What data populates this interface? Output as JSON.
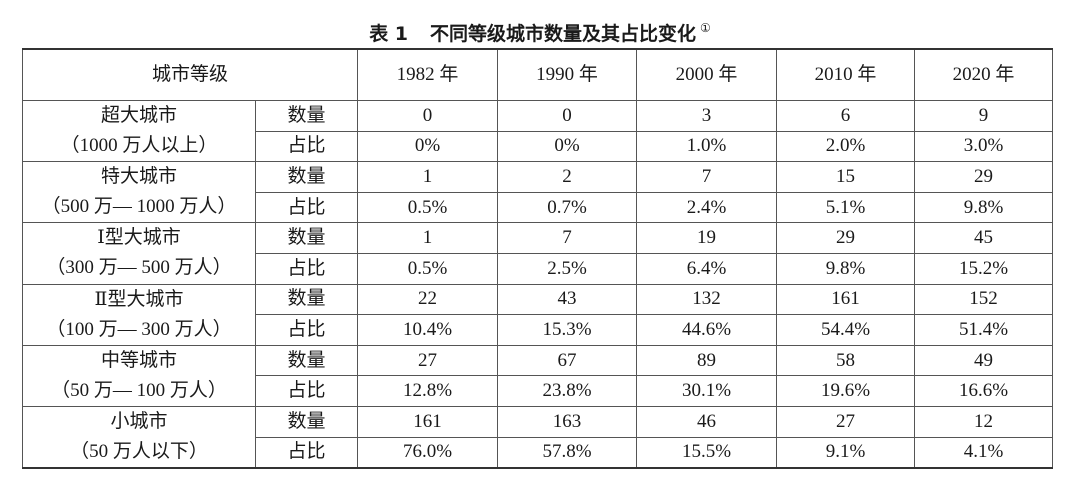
{
  "title": {
    "label": "表 1",
    "text": "不同等级城市数量及其占比变化",
    "note": "①"
  },
  "table": {
    "header": [
      "城市等级",
      "1982 年",
      "1990 年",
      "2000 年",
      "2010 年",
      "2020 年"
    ],
    "groups": [
      {
        "name": "超大城市",
        "range": "（1000 万人以上）",
        "rows": [
          {
            "label": "数量",
            "values": [
              "0",
              "0",
              "3",
              "6",
              "9"
            ]
          },
          {
            "label": "占比",
            "values": [
              "0%",
              "0%",
              "1.0%",
              "2.0%",
              "3.0%"
            ]
          }
        ]
      },
      {
        "name": "特大城市",
        "range": "（500 万— 1000 万人）",
        "rows": [
          {
            "label": "数量",
            "values": [
              "1",
              "2",
              "7",
              "15",
              "29"
            ]
          },
          {
            "label": "占比",
            "values": [
              "0.5%",
              "0.7%",
              "2.4%",
              "5.1%",
              "9.8%"
            ]
          }
        ]
      },
      {
        "name": "Ⅰ型大城市",
        "range": "（300 万— 500 万人）",
        "rows": [
          {
            "label": "数量",
            "values": [
              "1",
              "7",
              "19",
              "29",
              "45"
            ]
          },
          {
            "label": "占比",
            "values": [
              "0.5%",
              "2.5%",
              "6.4%",
              "9.8%",
              "15.2%"
            ]
          }
        ]
      },
      {
        "name": "Ⅱ型大城市",
        "range": "（100 万— 300 万人）",
        "rows": [
          {
            "label": "数量",
            "values": [
              "22",
              "43",
              "132",
              "161",
              "152"
            ]
          },
          {
            "label": "占比",
            "values": [
              "10.4%",
              "15.3%",
              "44.6%",
              "54.4%",
              "51.4%"
            ]
          }
        ]
      },
      {
        "name": "中等城市",
        "range": "（50 万— 100 万人）",
        "rows": [
          {
            "label": "数量",
            "values": [
              "27",
              "67",
              "89",
              "58",
              "49"
            ]
          },
          {
            "label": "占比",
            "values": [
              "12.8%",
              "23.8%",
              "30.1%",
              "19.6%",
              "16.6%"
            ]
          }
        ]
      },
      {
        "name": "小城市",
        "range": "（50 万人以下）",
        "rows": [
          {
            "label": "数量",
            "values": [
              "161",
              "163",
              "46",
              "27",
              "12"
            ]
          },
          {
            "label": "占比",
            "values": [
              "76.0%",
              "57.8%",
              "15.5%",
              "9.1%",
              "4.1%"
            ]
          }
        ]
      }
    ]
  }
}
